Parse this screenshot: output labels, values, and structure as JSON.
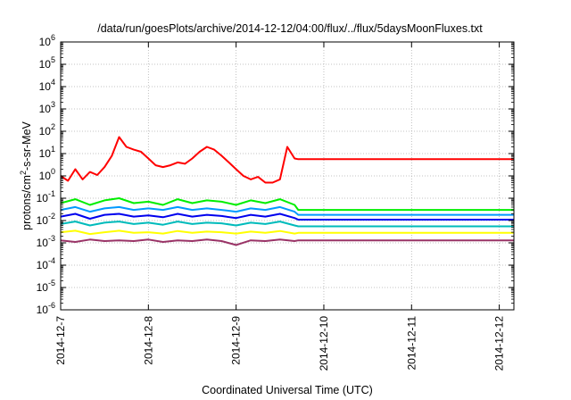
{
  "chart_data": {
    "type": "line",
    "title": "/data/run/goesPlots/archive/2014-12-12/04:00/flux/../flux/5daysMoonFluxes.txt",
    "xlabel": "Coordinated Universal Time (UTC)",
    "ylabel": "protons/cm²-s-sr-MeV",
    "y_scale": "log",
    "ylim": [
      1e-06,
      1000000.0
    ],
    "xlim": [
      "2014-12-07",
      "2014-12-12 04:00"
    ],
    "grid": true,
    "legend": "none",
    "x_ticks": [
      "2014-12-7",
      "2014-12-8",
      "2014-12-9",
      "2014-12-10",
      "2014-12-11",
      "2014-12-12"
    ],
    "y_ticks": [
      {
        "base": "10",
        "exp": "6"
      },
      {
        "base": "10",
        "exp": "5"
      },
      {
        "base": "10",
        "exp": "4"
      },
      {
        "base": "10",
        "exp": "3"
      },
      {
        "base": "10",
        "exp": "2"
      },
      {
        "base": "10",
        "exp": "1"
      },
      {
        "base": "10",
        "exp": "0"
      },
      {
        "base": "10",
        "exp": "-1"
      },
      {
        "base": "10",
        "exp": "-2"
      },
      {
        "base": "10",
        "exp": "-3"
      },
      {
        "base": "10",
        "exp": "-4"
      },
      {
        "base": "10",
        "exp": "-5"
      },
      {
        "base": "10",
        "exp": "-6"
      }
    ],
    "series": [
      {
        "color": "#ff0000",
        "x": [
          "2014-12-07 00:00",
          "2014-12-07 02:00",
          "2014-12-07 04:00",
          "2014-12-07 06:00",
          "2014-12-07 08:00",
          "2014-12-07 10:00",
          "2014-12-07 12:00",
          "2014-12-07 14:00",
          "2014-12-07 16:00",
          "2014-12-07 18:00",
          "2014-12-07 20:00",
          "2014-12-07 22:00",
          "2014-12-08 00:00",
          "2014-12-08 02:00",
          "2014-12-08 04:00",
          "2014-12-08 06:00",
          "2014-12-08 08:00",
          "2014-12-08 10:00",
          "2014-12-08 12:00",
          "2014-12-08 14:00",
          "2014-12-08 16:00",
          "2014-12-08 18:00",
          "2014-12-08 20:00",
          "2014-12-08 22:00",
          "2014-12-09 00:00",
          "2014-12-09 02:00",
          "2014-12-09 04:00",
          "2014-12-09 06:00",
          "2014-12-09 08:00",
          "2014-12-09 10:00",
          "2014-12-09 12:00",
          "2014-12-09 14:00",
          "2014-12-09 16:00",
          "2014-12-09 17:00",
          "2014-12-12 04:00"
        ],
        "y": [
          1.0,
          0.6,
          2.0,
          0.7,
          1.5,
          1.1,
          2.5,
          8,
          55,
          20,
          15,
          12,
          6,
          3,
          2.5,
          3,
          4,
          3.5,
          6,
          12,
          20,
          15,
          8,
          4,
          2,
          1.0,
          0.7,
          0.9,
          0.5,
          0.5,
          0.7,
          20,
          6,
          5.6,
          5.6
        ]
      },
      {
        "color": "#00ee00",
        "x": [
          "2014-12-07 00:00",
          "2014-12-07 04:00",
          "2014-12-07 08:00",
          "2014-12-07 12:00",
          "2014-12-07 16:00",
          "2014-12-07 20:00",
          "2014-12-08 00:00",
          "2014-12-08 04:00",
          "2014-12-08 08:00",
          "2014-12-08 12:00",
          "2014-12-08 16:00",
          "2014-12-08 20:00",
          "2014-12-09 00:00",
          "2014-12-09 04:00",
          "2014-12-09 08:00",
          "2014-12-09 12:00",
          "2014-12-09 16:00",
          "2014-12-09 17:00",
          "2014-12-12 04:00"
        ],
        "y": [
          0.06,
          0.09,
          0.05,
          0.08,
          0.1,
          0.06,
          0.07,
          0.05,
          0.09,
          0.06,
          0.08,
          0.07,
          0.05,
          0.08,
          0.06,
          0.09,
          0.05,
          0.03,
          0.03
        ]
      },
      {
        "color": "#0099ff",
        "x": [
          "2014-12-07 00:00",
          "2014-12-07 04:00",
          "2014-12-07 08:00",
          "2014-12-07 12:00",
          "2014-12-07 16:00",
          "2014-12-07 20:00",
          "2014-12-08 00:00",
          "2014-12-08 04:00",
          "2014-12-08 08:00",
          "2014-12-08 12:00",
          "2014-12-08 16:00",
          "2014-12-08 20:00",
          "2014-12-09 00:00",
          "2014-12-09 04:00",
          "2014-12-09 08:00",
          "2014-12-09 12:00",
          "2014-12-09 16:00",
          "2014-12-09 17:00",
          "2014-12-12 04:00"
        ],
        "y": [
          0.03,
          0.04,
          0.025,
          0.035,
          0.04,
          0.03,
          0.035,
          0.03,
          0.04,
          0.03,
          0.035,
          0.03,
          0.025,
          0.035,
          0.03,
          0.04,
          0.025,
          0.018,
          0.018
        ]
      },
      {
        "color": "#0000ee",
        "x": [
          "2014-12-07 00:00",
          "2014-12-07 04:00",
          "2014-12-07 08:00",
          "2014-12-07 12:00",
          "2014-12-07 16:00",
          "2014-12-07 20:00",
          "2014-12-08 00:00",
          "2014-12-08 04:00",
          "2014-12-08 08:00",
          "2014-12-08 12:00",
          "2014-12-08 16:00",
          "2014-12-08 20:00",
          "2014-12-09 00:00",
          "2014-12-09 04:00",
          "2014-12-09 08:00",
          "2014-12-09 12:00",
          "2014-12-09 16:00",
          "2014-12-09 17:00",
          "2014-12-12 04:00"
        ],
        "y": [
          0.015,
          0.02,
          0.012,
          0.018,
          0.02,
          0.015,
          0.017,
          0.014,
          0.02,
          0.015,
          0.018,
          0.016,
          0.013,
          0.018,
          0.015,
          0.02,
          0.013,
          0.011,
          0.011
        ]
      },
      {
        "color": "#00bbbb",
        "x": [
          "2014-12-07 00:00",
          "2014-12-07 04:00",
          "2014-12-07 08:00",
          "2014-12-07 12:00",
          "2014-12-07 16:00",
          "2014-12-07 20:00",
          "2014-12-08 00:00",
          "2014-12-08 04:00",
          "2014-12-08 08:00",
          "2014-12-08 12:00",
          "2014-12-08 16:00",
          "2014-12-08 20:00",
          "2014-12-09 00:00",
          "2014-12-09 04:00",
          "2014-12-09 08:00",
          "2014-12-09 12:00",
          "2014-12-09 16:00",
          "2014-12-09 17:00",
          "2014-12-12 04:00"
        ],
        "y": [
          0.007,
          0.009,
          0.006,
          0.008,
          0.009,
          0.007,
          0.008,
          0.0065,
          0.009,
          0.007,
          0.008,
          0.0075,
          0.006,
          0.008,
          0.007,
          0.009,
          0.006,
          0.0055,
          0.0055
        ]
      },
      {
        "color": "#ffff00",
        "x": [
          "2014-12-07 00:00",
          "2014-12-07 04:00",
          "2014-12-07 08:00",
          "2014-12-07 12:00",
          "2014-12-07 16:00",
          "2014-12-07 20:00",
          "2014-12-08 00:00",
          "2014-12-08 04:00",
          "2014-12-08 08:00",
          "2014-12-08 12:00",
          "2014-12-08 16:00",
          "2014-12-08 20:00",
          "2014-12-09 00:00",
          "2014-12-09 04:00",
          "2014-12-09 08:00",
          "2014-12-09 12:00",
          "2014-12-09 16:00",
          "2014-12-09 17:00",
          "2014-12-12 04:00"
        ],
        "y": [
          0.003,
          0.0035,
          0.0025,
          0.003,
          0.0035,
          0.0028,
          0.003,
          0.0026,
          0.0034,
          0.0028,
          0.0032,
          0.003,
          0.0026,
          0.0032,
          0.0028,
          0.0034,
          0.0026,
          0.0028,
          0.0028
        ]
      },
      {
        "color": "#993366",
        "x": [
          "2014-12-07 00:00",
          "2014-12-07 04:00",
          "2014-12-07 08:00",
          "2014-12-07 12:00",
          "2014-12-07 16:00",
          "2014-12-07 20:00",
          "2014-12-08 00:00",
          "2014-12-08 04:00",
          "2014-12-08 08:00",
          "2014-12-08 12:00",
          "2014-12-08 16:00",
          "2014-12-08 20:00",
          "2014-12-09 00:00",
          "2014-12-09 04:00",
          "2014-12-09 08:00",
          "2014-12-09 12:00",
          "2014-12-09 16:00",
          "2014-12-09 17:00",
          "2014-12-12 04:00"
        ],
        "y": [
          0.0013,
          0.0011,
          0.0014,
          0.0012,
          0.0013,
          0.0012,
          0.0014,
          0.0011,
          0.0013,
          0.0012,
          0.0014,
          0.0012,
          0.0008,
          0.0013,
          0.0012,
          0.0014,
          0.0012,
          0.0013,
          0.0013
        ]
      }
    ]
  }
}
